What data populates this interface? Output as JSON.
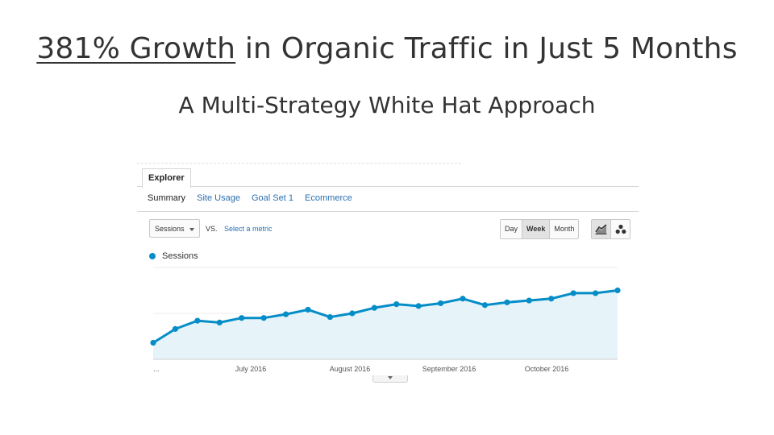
{
  "slide": {
    "title_highlight": "381% Growth",
    "title_rest": " in Organic Traffic in Just 5 Months",
    "subtitle": "A Multi-Strategy White Hat Approach"
  },
  "explorer": {
    "tab_label": "Explorer",
    "subtabs": [
      "Summary",
      "Site Usage",
      "Goal Set 1",
      "Ecommerce"
    ],
    "active_subtab": "Summary",
    "metric_select": "Sessions",
    "vs_label": "VS.",
    "select_metric_link": "Select a metric",
    "time_buttons": [
      "Day",
      "Week",
      "Month"
    ],
    "active_time_button": "Week",
    "chart_buttons": [
      "line-chart-icon",
      "motion-chart-icon"
    ],
    "legend_label": "Sessions"
  },
  "colors": {
    "series": "#058dc7",
    "area_fill": "#e6f4fa",
    "link": "#2a6fb0"
  },
  "chart_data": {
    "type": "area",
    "series": [
      {
        "name": "Sessions",
        "values": [
          18,
          33,
          42,
          40,
          45,
          45,
          49,
          54,
          46,
          50,
          56,
          60,
          58,
          61,
          66,
          59,
          62,
          64,
          66,
          72,
          72,
          75
        ]
      }
    ],
    "x_tick_labels": [
      "...",
      "July 2016",
      "August 2016",
      "September 2016",
      "October 2016"
    ],
    "ylim": [
      0,
      100
    ],
    "grid": true
  }
}
